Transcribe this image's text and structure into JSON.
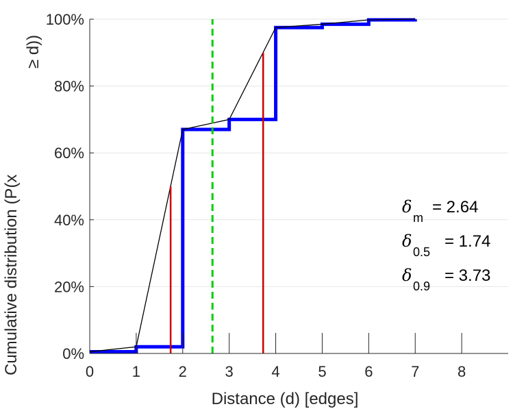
{
  "chart_data": {
    "type": "line",
    "xlabel": "Distance (d) [edges]",
    "ylabel": "Cumulative distribution (P(x",
    "ylabel_cont": "≥ d))",
    "xlim": [
      0,
      9
    ],
    "ylim": [
      0,
      1
    ],
    "x_ticks": [
      0,
      1,
      2,
      3,
      4,
      5,
      6,
      7,
      8
    ],
    "x_tick_labels": [
      "0",
      "1",
      "2",
      "3",
      "4",
      "5",
      "6",
      "7",
      "8"
    ],
    "y_ticks": [
      0,
      0.2,
      0.4,
      0.6,
      0.8,
      1.0
    ],
    "y_tick_labels": [
      "0%",
      "20%",
      "40%",
      "60%",
      "80%",
      "100%"
    ],
    "grid": "horizontal",
    "series": [
      {
        "kind": "step",
        "color": "#0000ff",
        "x": [
          0,
          1,
          2,
          3,
          4,
          5,
          6,
          7
        ],
        "y": [
          0.005,
          0.02,
          0.67,
          0.7,
          0.975,
          0.985,
          0.998,
          1.0
        ]
      },
      {
        "kind": "line",
        "color": "#000000",
        "x": [
          0,
          1,
          2,
          3,
          4,
          5,
          6,
          7
        ],
        "y": [
          0.005,
          0.02,
          0.67,
          0.7,
          0.975,
          0.985,
          0.998,
          1.0
        ]
      }
    ],
    "vlines": [
      {
        "x": 2.64,
        "y_max": 1.0,
        "color": "#00cc00",
        "style": "dashed"
      },
      {
        "x": 1.74,
        "y_max": 0.5,
        "color": "#cc0000",
        "style": "solid"
      },
      {
        "x": 3.73,
        "y_max": 0.9,
        "color": "#cc0000",
        "style": "solid"
      }
    ],
    "annotations": [
      {
        "symbol": "δ",
        "sub": "m",
        "text": "= 2.64"
      },
      {
        "symbol": "δ",
        "sub": "0.5",
        "text": "= 1.74"
      },
      {
        "symbol": "δ",
        "sub": "0.9",
        "text": "= 3.73"
      }
    ]
  }
}
